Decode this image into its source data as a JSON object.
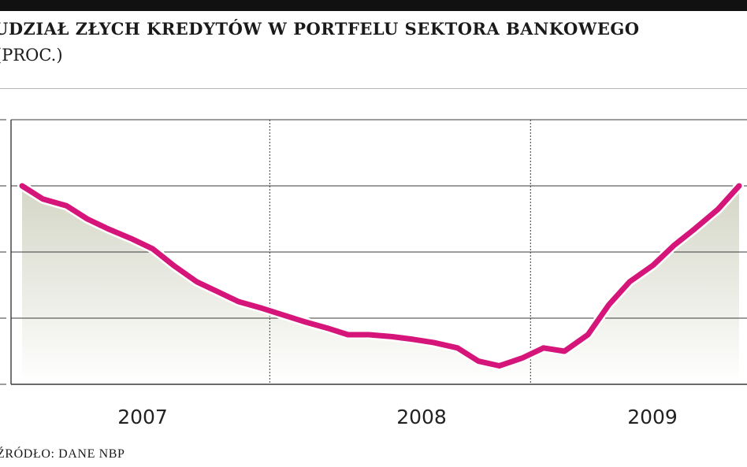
{
  "header": {
    "title": "UDZIAŁ ZŁYCH KREDYTÓW W PORTFELU SEKTORA BANKOWEGO",
    "subtitle": "(PROC.)"
  },
  "source": "ŹRÓDŁO: DANE NBP",
  "colors": {
    "line": "#d6157a",
    "area_top": "#d4d6c6",
    "area_bottom": "#ffffff",
    "grid": "#3a3a3a",
    "top_bar": "#111111"
  },
  "chart_data": {
    "type": "area",
    "title": "UDZIAŁ ZŁYCH KREDYTÓW W PORTFELU SEKTORA BANKOWEGO",
    "subtitle": "(PROC.)",
    "xlabel": "",
    "ylabel": "",
    "ylim": [
      4,
      8
    ],
    "grid": true,
    "categories": [
      "2007",
      "2008",
      "2009"
    ],
    "x": [
      2007.0,
      2007.08,
      2007.17,
      2007.25,
      2007.33,
      2007.42,
      2007.5,
      2007.58,
      2007.67,
      2007.75,
      2007.83,
      2007.92,
      2008.0,
      2008.08,
      2008.17,
      2008.25,
      2008.33,
      2008.42,
      2008.5,
      2008.58,
      2008.67,
      2008.75,
      2008.83,
      2008.92,
      2009.0,
      2009.08,
      2009.17,
      2009.25,
      2009.33,
      2009.42,
      2009.5,
      2009.58,
      2009.67,
      2009.75
    ],
    "series": [
      {
        "values": [
          7.0,
          6.8,
          6.7,
          6.5,
          6.35,
          6.2,
          6.05,
          5.8,
          5.55,
          5.4,
          5.25,
          5.15,
          5.05,
          4.95,
          4.85,
          4.75,
          4.75,
          4.72,
          4.68,
          4.63,
          4.55,
          4.35,
          4.28,
          4.4,
          4.55,
          4.5,
          4.75,
          5.2,
          5.55,
          5.8,
          6.1,
          6.35,
          6.65,
          7.0
        ]
      }
    ]
  }
}
